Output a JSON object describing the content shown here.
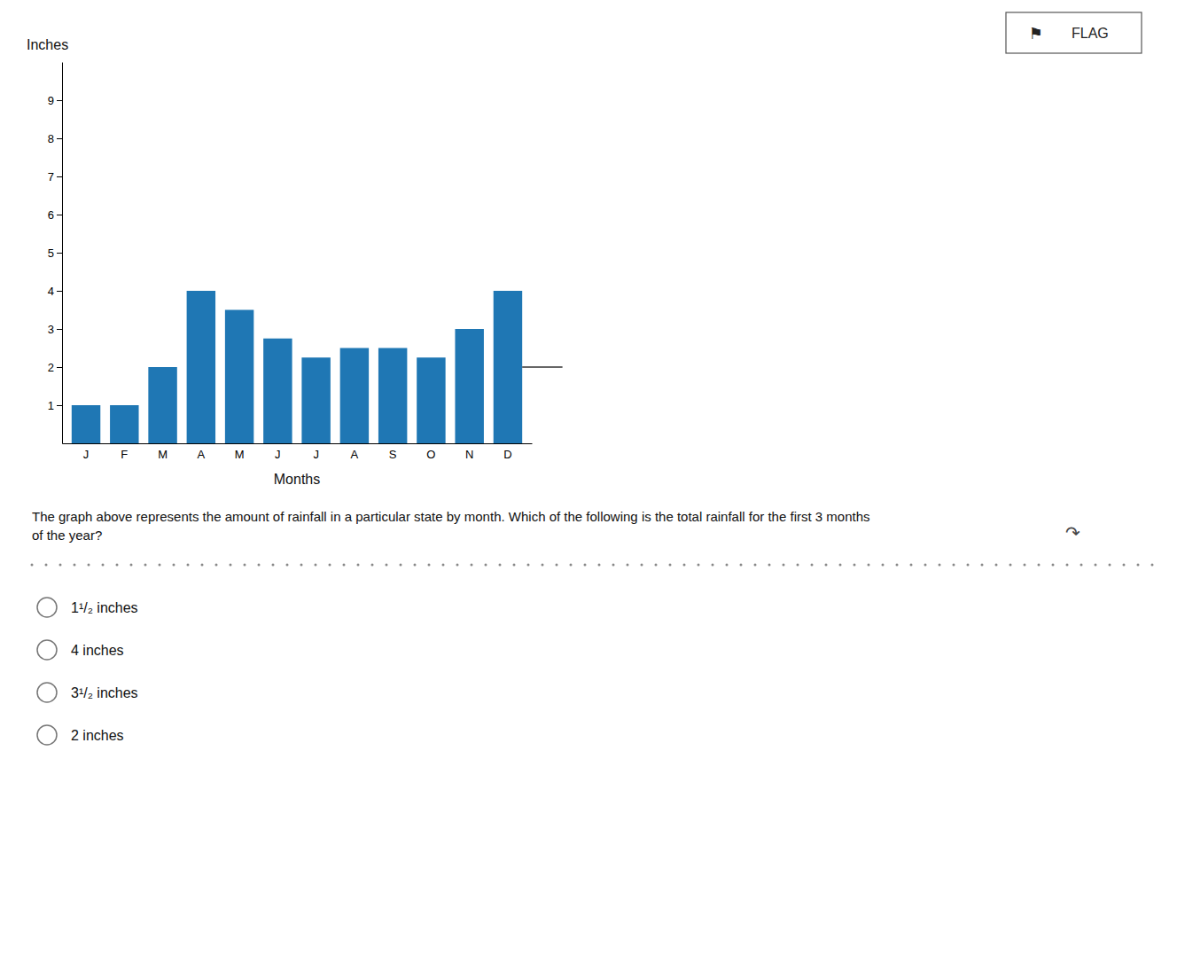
{
  "chart_data": {
    "type": "bar",
    "categories": [
      "J",
      "F",
      "M",
      "A",
      "M",
      "J",
      "J",
      "A",
      "S",
      "O",
      "N",
      "D"
    ],
    "values": [
      1.0,
      1.0,
      2.0,
      4.0,
      3.5,
      2.75,
      2.25,
      2.5,
      2.5,
      2.25,
      3.0,
      4.0
    ],
    "xlabel": "Months",
    "ylabel": "Inches",
    "ylim": [
      0,
      10
    ],
    "yticks": [
      1,
      2,
      3,
      4,
      5,
      6,
      7,
      8,
      9
    ],
    "grid": false,
    "flat_line_y": 2.0
  },
  "flag_icon": "⚑",
  "flag_text": "FLAG",
  "question_text": "The graph above represents the amount of rainfall in a particular state by month. Which of the following is the total rainfall for the first 3 months\nof the year?",
  "cursor_icon": "↷",
  "answers": [
    "1¹/₂ inches",
    "4 inches",
    "3¹/₂ inches",
    "2 inches"
  ]
}
